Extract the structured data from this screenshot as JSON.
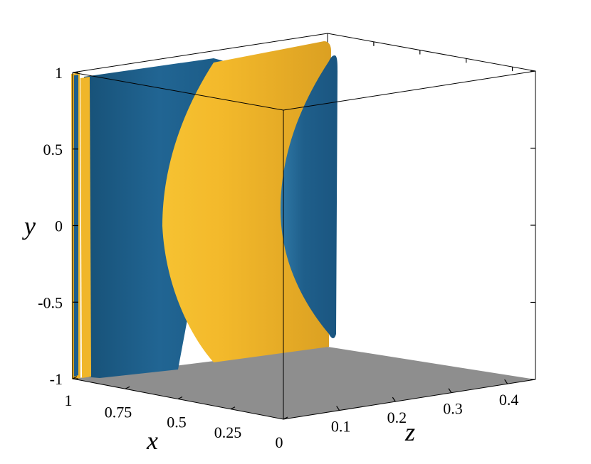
{
  "chart_data": {
    "type": "isosurface-3d",
    "axes": {
      "x": {
        "title": "x",
        "range": [
          1,
          0
        ],
        "ticks": [
          {
            "value": 1,
            "label": "1"
          },
          {
            "value": 0.75,
            "label": "0.75"
          },
          {
            "value": 0.5,
            "label": "0.5"
          },
          {
            "value": 0.25,
            "label": "0.25"
          },
          {
            "value": 0,
            "label": "0"
          }
        ]
      },
      "y": {
        "title": "y",
        "range": [
          -1,
          1
        ],
        "ticks": [
          {
            "value": 1,
            "label": "1"
          },
          {
            "value": 0.5,
            "label": "0.5"
          },
          {
            "value": 0,
            "label": "0"
          },
          {
            "value": -0.5,
            "label": "-0.5"
          },
          {
            "value": -1,
            "label": "-1"
          }
        ]
      },
      "z": {
        "title": "z",
        "range": [
          0,
          0.45
        ],
        "ticks": [
          {
            "value": 0.1,
            "label": "0.1"
          },
          {
            "value": 0.2,
            "label": "0.2"
          },
          {
            "value": 0.3,
            "label": "0.3"
          },
          {
            "value": 0.4,
            "label": "0.4"
          }
        ]
      }
    },
    "surfaces": [
      {
        "color": "#1f5f8b",
        "role": "vortex-sheet-1"
      },
      {
        "color": "#f0b62a",
        "role": "vortex-sheet-2"
      },
      {
        "color": "#1f5f8b",
        "role": "vortex-sheet-3"
      },
      {
        "color": "#f0b62a",
        "role": "vortex-sheet-4"
      },
      {
        "color": "#1f5f8b",
        "role": "vortex-sheet-5"
      }
    ],
    "floor_color": "#8e8e8e",
    "box_color": "#000000"
  }
}
